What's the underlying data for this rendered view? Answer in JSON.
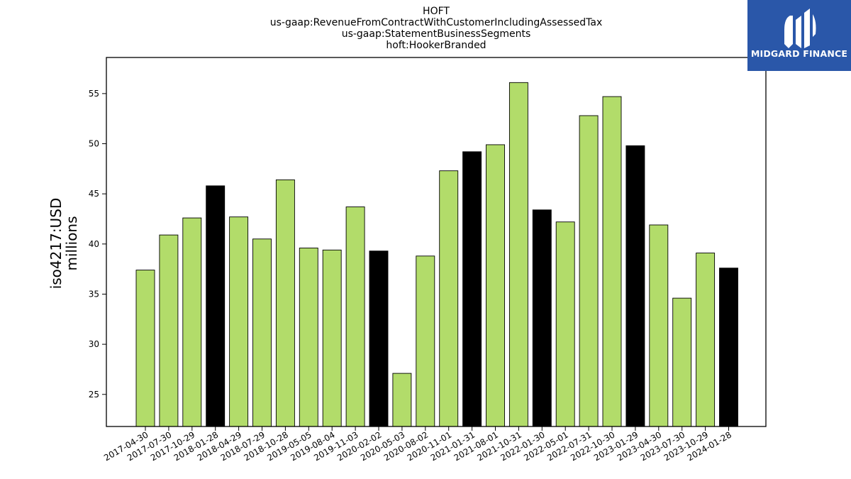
{
  "chart_data": {
    "type": "bar",
    "title_lines": [
      "HOFT",
      "us-gaap:RevenueFromContractWithCustomerIncludingAssessedTax",
      "us-gaap:StatementBusinessSegments",
      "hoft:HookerBranded"
    ],
    "ylabel_lines": [
      "iso4217:USD",
      "millions"
    ],
    "xlabel": "",
    "ylim": [
      21.8,
      58.6
    ],
    "yticks": [
      25,
      30,
      35,
      40,
      45,
      50,
      55
    ],
    "categories": [
      "2017-04-30",
      "2017-07-30",
      "2017-10-29",
      "2018-01-28",
      "2018-04-29",
      "2018-07-29",
      "2018-10-28",
      "2019-05-05",
      "2019-08-04",
      "2019-11-03",
      "2020-02-02",
      "2020-05-03",
      "2020-08-02",
      "2020-11-01",
      "2021-01-31",
      "2021-08-01",
      "2021-10-31",
      "2022-01-30",
      "2022-05-01",
      "2022-07-31",
      "2022-10-30",
      "2023-01-29",
      "2023-04-30",
      "2023-07-30",
      "2023-10-29",
      "2024-01-28"
    ],
    "values": [
      37.4,
      40.9,
      42.6,
      45.8,
      42.7,
      40.5,
      46.4,
      39.6,
      39.4,
      43.7,
      39.3,
      27.1,
      38.8,
      47.3,
      49.2,
      49.9,
      56.1,
      43.4,
      42.2,
      52.8,
      54.7,
      49.8,
      41.9,
      34.6,
      39.1,
      37.6
    ],
    "bar_colors": [
      "green",
      "green",
      "green",
      "black",
      "green",
      "green",
      "green",
      "green",
      "green",
      "green",
      "black",
      "green",
      "green",
      "green",
      "black",
      "green",
      "green",
      "black",
      "green",
      "green",
      "green",
      "black",
      "green",
      "green",
      "green",
      "black"
    ],
    "colors": {
      "green": "#b2dc6a",
      "black": "#000000",
      "edge": "#000000"
    },
    "grid": false,
    "legend": "none"
  },
  "logo": {
    "text": "MIDGARD FINANCE",
    "background": "#2a57a9"
  }
}
